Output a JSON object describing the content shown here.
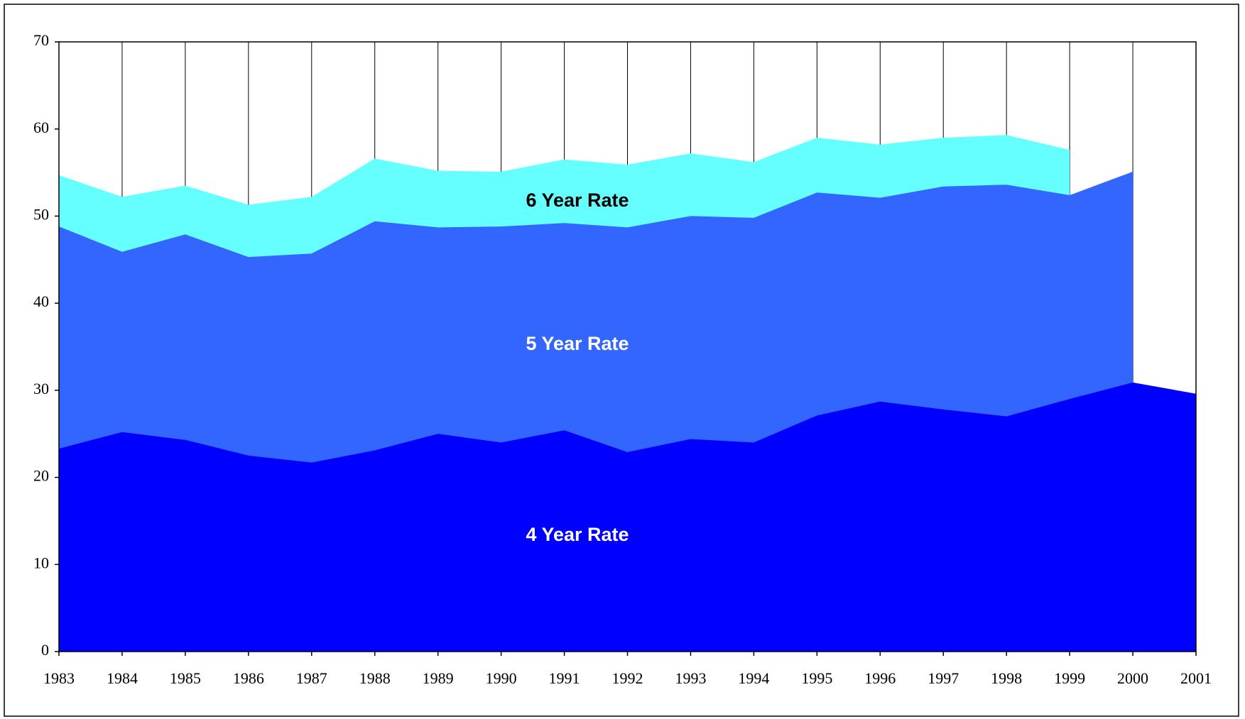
{
  "chart_data": {
    "type": "area",
    "categories": [
      "1983",
      "1984",
      "1985",
      "1986",
      "1987",
      "1988",
      "1989",
      "1990",
      "1991",
      "1992",
      "1993",
      "1994",
      "1995",
      "1996",
      "1997",
      "1998",
      "1999",
      "2000",
      "2001"
    ],
    "series": [
      {
        "name": "6 Year Rate",
        "color": "#66FFFF",
        "label_color": "#000000",
        "values": [
          54.7,
          52.2,
          53.5,
          51.3,
          52.2,
          56.6,
          55.2,
          55.1,
          56.5,
          55.9,
          57.2,
          56.2,
          59.0,
          58.2,
          59.0,
          59.3,
          57.6,
          null,
          null
        ]
      },
      {
        "name": "5 Year Rate",
        "color": "#3366FF",
        "label_color": "#FFFFFF",
        "values": [
          48.8,
          45.9,
          47.9,
          45.3,
          45.7,
          49.4,
          48.7,
          48.8,
          49.2,
          48.7,
          50.0,
          49.8,
          52.7,
          52.1,
          53.4,
          53.6,
          52.4,
          55.1,
          null
        ]
      },
      {
        "name": "4 Year Rate",
        "color": "#0000FF",
        "label_color": "#FFFFFF",
        "values": [
          23.3,
          25.2,
          24.3,
          22.5,
          21.7,
          23.1,
          25.0,
          24.0,
          25.4,
          22.9,
          24.4,
          24.0,
          27.1,
          28.7,
          27.8,
          27.0,
          29.0,
          30.9,
          29.6
        ]
      }
    ],
    "ylim": [
      0,
      70
    ],
    "yticks": [
      0,
      10,
      20,
      30,
      40,
      50,
      60,
      70
    ],
    "grid": "vertical"
  }
}
